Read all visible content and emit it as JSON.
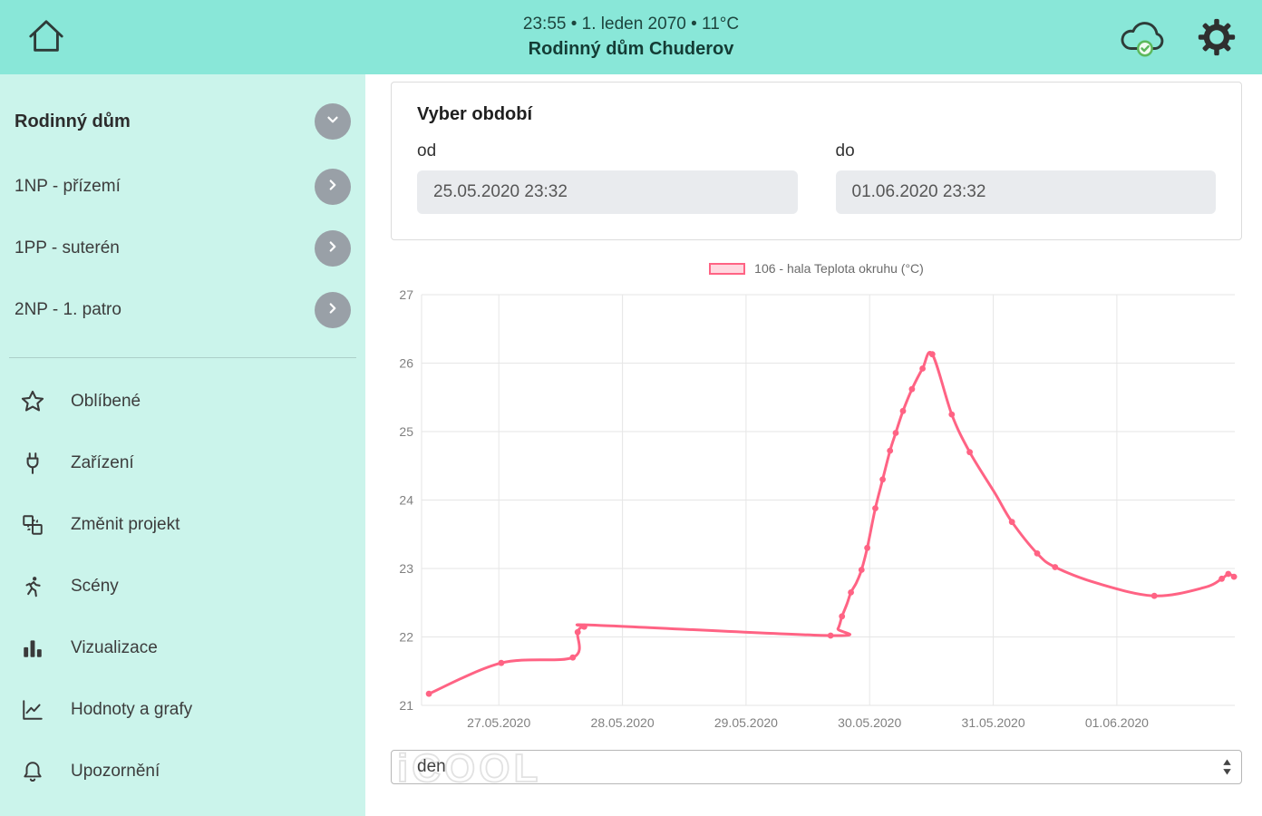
{
  "header": {
    "status_line": "23:55 • 1. leden 2070 • 11°C",
    "title": "Rodinný dům Chuderov"
  },
  "icons": {
    "left": "home-icon",
    "right": [
      "cloud-check-sync-icon",
      "gear-settings-icon"
    ],
    "sidebar_menu": [
      "star-icon",
      "plug-device-icon",
      "layout-project-icon",
      "running-person-icon",
      "bar-chart-icon",
      "line-chart-icon",
      "bell-alert-icon"
    ]
  },
  "colors": {
    "header_bg": "#89e7d8",
    "sidebar_bg": "#cbf4eb",
    "check_green": "#5cb85c",
    "series": "#ff6384"
  },
  "sidebar": {
    "project": {
      "label": "Rodinný dům"
    },
    "floors": [
      {
        "label": "1NP - přízemí"
      },
      {
        "label": "1PP - suterén"
      },
      {
        "label": "2NP - 1. patro"
      }
    ],
    "menu": [
      {
        "label": "Oblíbené"
      },
      {
        "label": "Zařízení"
      },
      {
        "label": "Změnit projekt"
      },
      {
        "label": "Scény"
      },
      {
        "label": "Vizualizace"
      },
      {
        "label": "Hodnoty a grafy"
      },
      {
        "label": "Upozornění"
      }
    ]
  },
  "period": {
    "title": "Vyber období",
    "from_label": "od",
    "from_value": "25.05.2020 23:32",
    "to_label": "do",
    "to_value": "01.06.2020 23:32"
  },
  "interval": {
    "value": "den",
    "watermark": "iCOOL"
  },
  "chart_data": {
    "type": "line",
    "legend_label": "106 - hala Teplota okruhu (°C)",
    "ylabel": "Teplota okruhu (°C)",
    "color": "#ff6384",
    "fill": "rgba(255,99,132,0.25)",
    "grid": true,
    "legend_position": "top",
    "ylim": [
      21,
      27
    ],
    "yticks": [
      21,
      22,
      23,
      24,
      25,
      26,
      27
    ],
    "xticks": [
      "27.05.2020",
      "28.05.2020",
      "29.05.2020",
      "30.05.2020",
      "31.05.2020",
      "01.06.2020"
    ],
    "xtick_pos": [
      0.095,
      0.247,
      0.399,
      0.551,
      0.703,
      0.855
    ],
    "x_note": "x = fraction of selected period 25.05.2020 23:32 to 01.06.2020 23:32; point = [x, temp_C, marker]",
    "points": [
      [
        0.009,
        21.17,
        1
      ],
      [
        0.098,
        21.62,
        1
      ],
      [
        0.186,
        21.7,
        1
      ],
      [
        0.192,
        22.07,
        1
      ],
      [
        0.2,
        22.15,
        1
      ],
      [
        0.218,
        22.17,
        0
      ],
      [
        0.503,
        22.02,
        1
      ],
      [
        0.512,
        22.12,
        0
      ],
      [
        0.517,
        22.3,
        1
      ],
      [
        0.523,
        22.48,
        0
      ],
      [
        0.528,
        22.65,
        1
      ],
      [
        0.535,
        22.8,
        0
      ],
      [
        0.541,
        22.98,
        1
      ],
      [
        0.548,
        23.3,
        1
      ],
      [
        0.558,
        23.88,
        1
      ],
      [
        0.567,
        24.3,
        1
      ],
      [
        0.576,
        24.72,
        1
      ],
      [
        0.583,
        24.98,
        1
      ],
      [
        0.592,
        25.3,
        1
      ],
      [
        0.603,
        25.62,
        1
      ],
      [
        0.616,
        25.92,
        1
      ],
      [
        0.628,
        26.13,
        1
      ],
      [
        0.652,
        25.25,
        1
      ],
      [
        0.674,
        24.7,
        1
      ],
      [
        0.705,
        24.1,
        0
      ],
      [
        0.726,
        23.68,
        1
      ],
      [
        0.757,
        23.22,
        1
      ],
      [
        0.779,
        23.02,
        1
      ],
      [
        0.832,
        22.78,
        0
      ],
      [
        0.901,
        22.6,
        1
      ],
      [
        0.962,
        22.72,
        0
      ],
      [
        0.984,
        22.85,
        1
      ],
      [
        0.992,
        22.92,
        1
      ],
      [
        0.999,
        22.88,
        1
      ]
    ]
  }
}
